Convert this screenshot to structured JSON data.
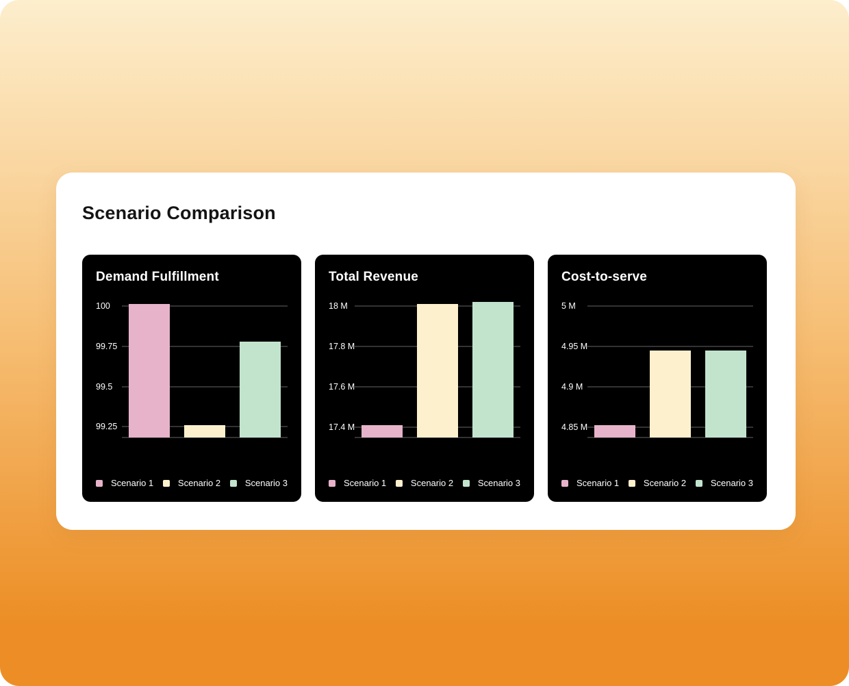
{
  "card": {
    "title": "Scenario Comparison"
  },
  "theme": {
    "background_gradient_top": "#fdeecd",
    "background_gradient_bottom": "#ec8e25",
    "card_bg": "#ffffff",
    "panel_bg": "#000000",
    "grid_color": "#333333",
    "title_color": "#141414",
    "text_on_dark": "#ffffff",
    "series_colors": {
      "scenario_1": "#e7b3ca",
      "scenario_2": "#fdf0cd",
      "scenario_3": "#c2e4cd"
    }
  },
  "chart_data": [
    {
      "type": "bar",
      "title": "Demand Fulfillment",
      "categories": [
        "Scenario 1",
        "Scenario 2",
        "Scenario 3"
      ],
      "values": [
        100.01,
        99.26,
        99.78
      ],
      "colors": [
        "#e7b3ca",
        "#fdf0cd",
        "#c2e4cd"
      ],
      "yticks": [
        {
          "value": 100,
          "label": "100"
        },
        {
          "value": 99.75,
          "label": "99.75"
        },
        {
          "value": 99.5,
          "label": "99.5"
        },
        {
          "value": 99.25,
          "label": "99.25"
        }
      ],
      "ylim": [
        99.185,
        100.038
      ],
      "grid": true,
      "legend_position": "bottom",
      "legend": [
        "Scenario 1",
        "Scenario 2",
        "Scenario 3"
      ]
    },
    {
      "type": "bar",
      "title": "Total Revenue",
      "categories": [
        "Scenario 1",
        "Scenario 2",
        "Scenario 3"
      ],
      "values": [
        17.41,
        18.01,
        18.02
      ],
      "unit": "M",
      "colors": [
        "#e7b3ca",
        "#fdf0cd",
        "#c2e4cd"
      ],
      "yticks": [
        {
          "value": 18,
          "label": "18 M"
        },
        {
          "value": 17.8,
          "label": "17.8 M"
        },
        {
          "value": 17.6,
          "label": "17.6 M"
        },
        {
          "value": 17.4,
          "label": "17.4 M"
        }
      ],
      "ylim": [
        17.349,
        18.031
      ],
      "grid": true,
      "legend_position": "bottom",
      "legend": [
        "Scenario 1",
        "Scenario 2",
        "Scenario 3"
      ]
    },
    {
      "type": "bar",
      "title": "Cost-to-serve",
      "categories": [
        "Scenario 1",
        "Scenario 2",
        "Scenario 3"
      ],
      "values": [
        4.852,
        4.945,
        4.945
      ],
      "unit": "M",
      "colors": [
        "#e7b3ca",
        "#fdf0cd",
        "#c2e4cd"
      ],
      "yticks": [
        {
          "value": 5,
          "label": "5 M"
        },
        {
          "value": 4.95,
          "label": "4.95 M"
        },
        {
          "value": 4.9,
          "label": "4.9 M"
        },
        {
          "value": 4.85,
          "label": "4.85 M"
        }
      ],
      "ylim": [
        4.837,
        5.008
      ],
      "grid": true,
      "legend_position": "bottom",
      "legend": [
        "Scenario 1",
        "Scenario 2",
        "Scenario 3"
      ]
    }
  ]
}
